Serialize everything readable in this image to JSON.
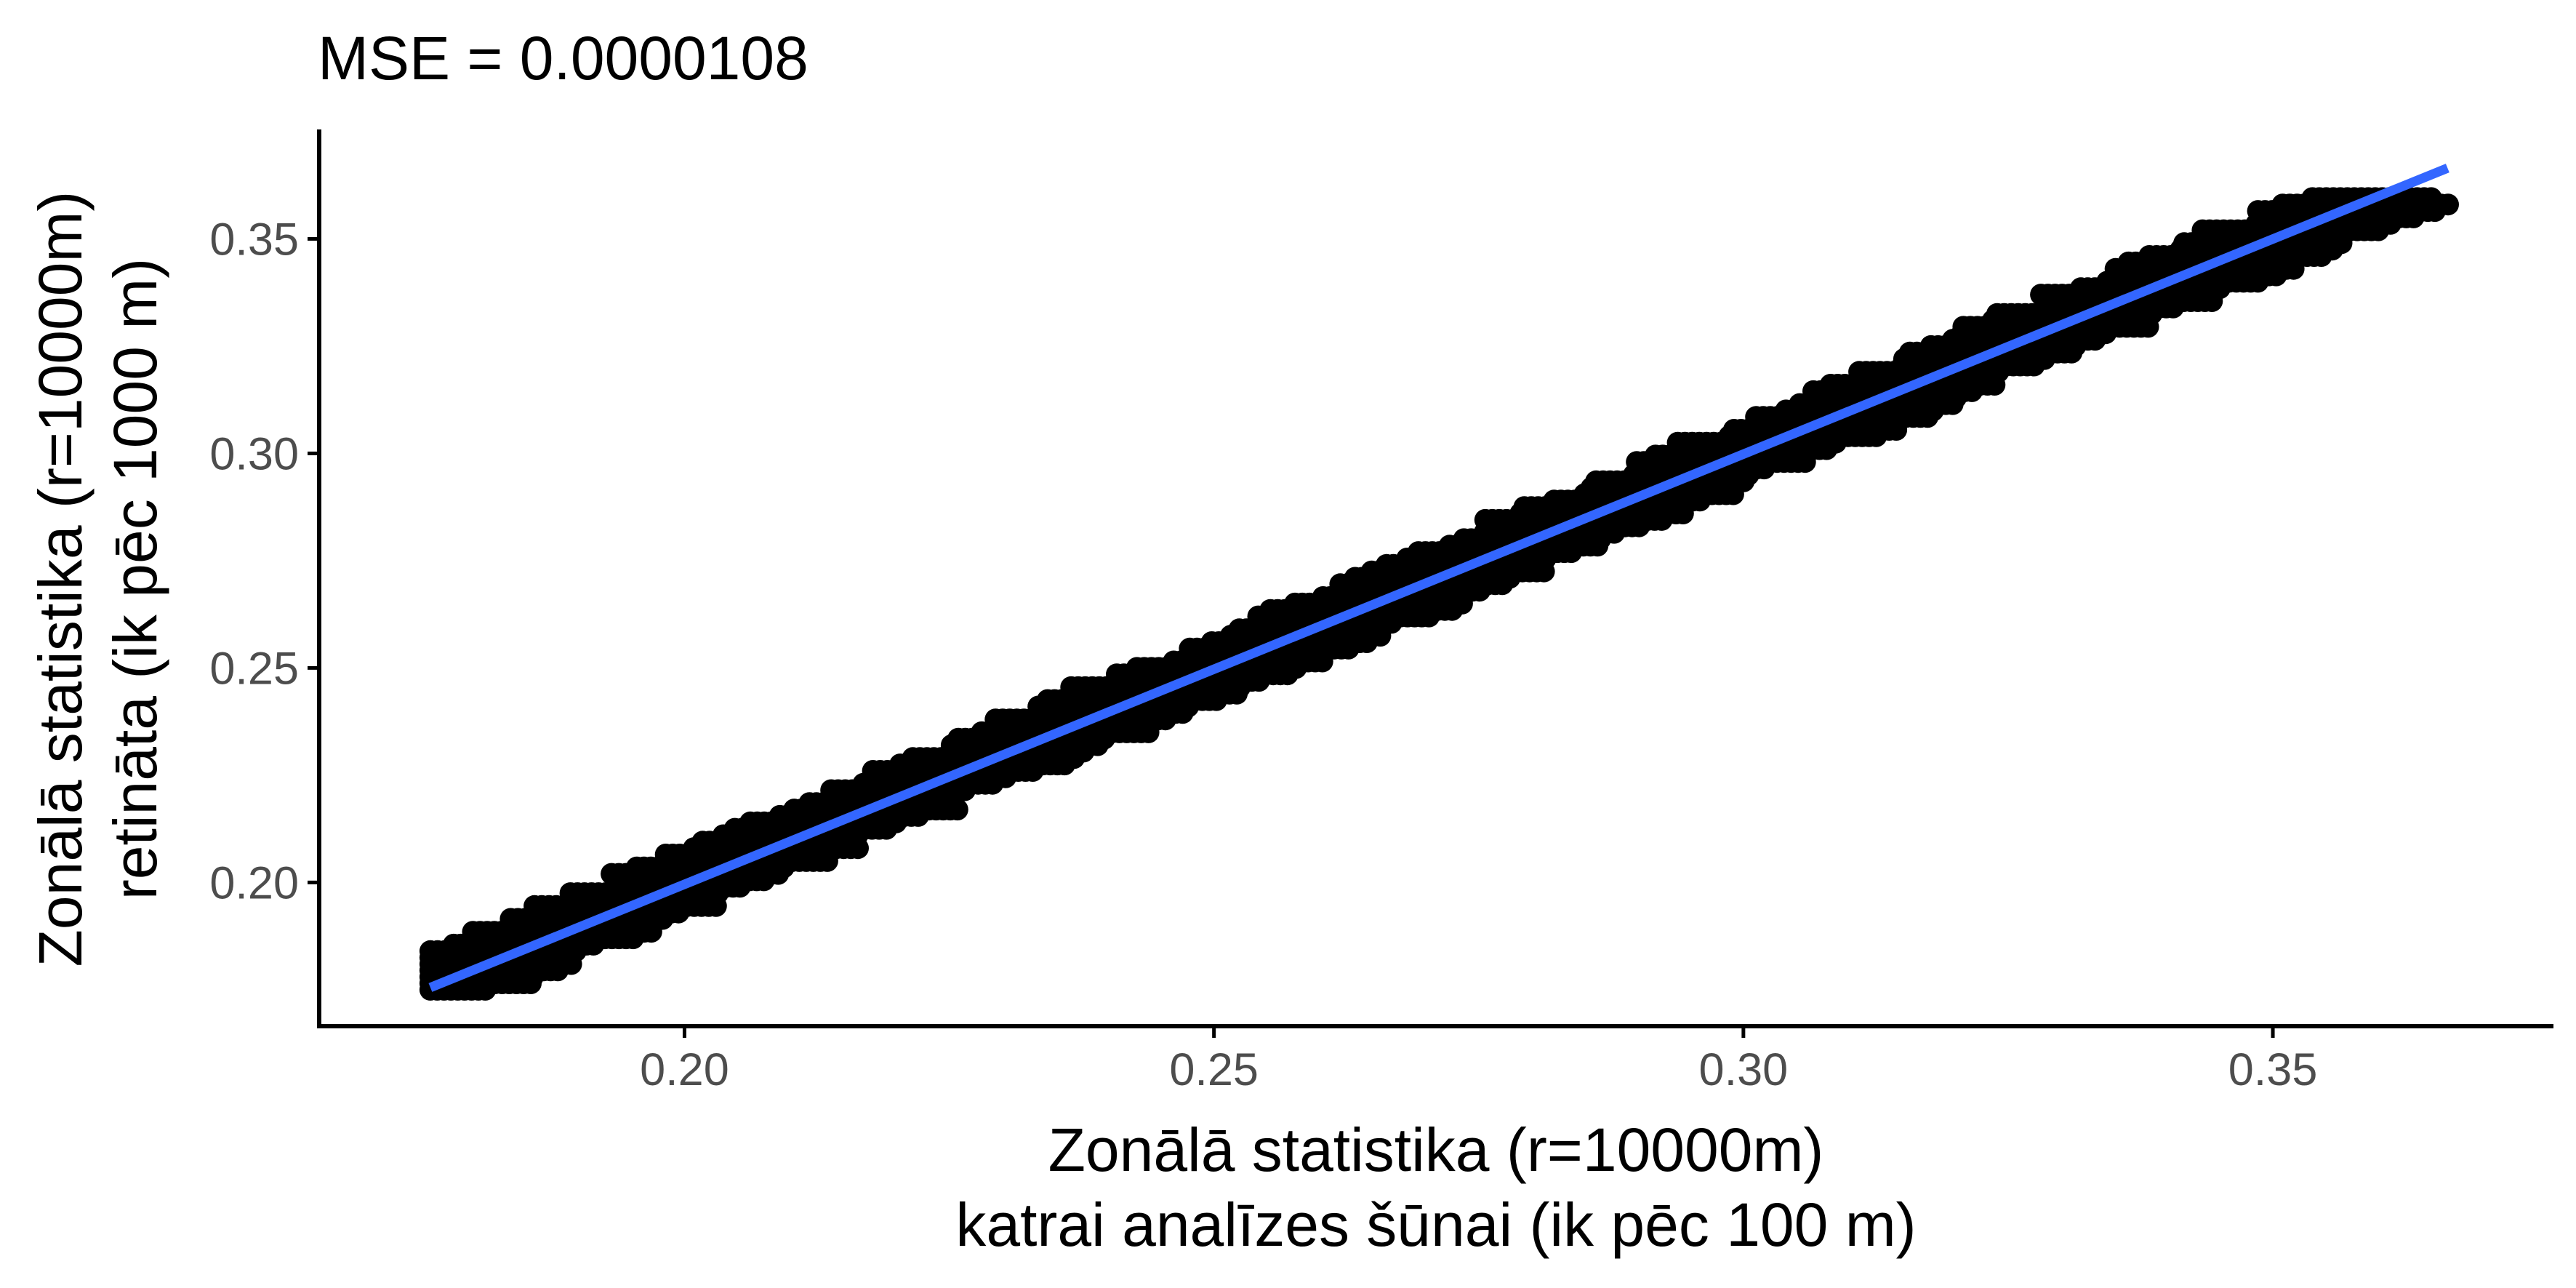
{
  "chart_data": {
    "type": "scatter",
    "title": "MSE = 0.0000108",
    "xlabel_lines": [
      "Zonālā statistika (r=10000m)",
      "katrai analīzes šūnai (ik pēc 100 m)"
    ],
    "ylabel_lines": [
      "Zonālā statistika (r=10000m)",
      "retināta (ik pēc 1000 m)"
    ],
    "xlim": [
      0.1655,
      0.3765
    ],
    "ylim": [
      0.1665,
      0.3755
    ],
    "x_ticks": [
      0.2,
      0.25,
      0.3,
      0.35
    ],
    "x_tick_labels": [
      "0.20",
      "0.25",
      "0.30",
      "0.35"
    ],
    "y_ticks": [
      0.2,
      0.25,
      0.3,
      0.35
    ],
    "y_tick_labels": [
      "0.20",
      "0.25",
      "0.30",
      "0.35"
    ],
    "grid": false,
    "point_color": "#000000",
    "points_x_range": [
      0.176,
      0.3675
    ],
    "points_y_range": [
      0.175,
      0.3595
    ],
    "y_level_step": 0.0015,
    "band_half_width": 0.009,
    "fit_line": {
      "type": "linear",
      "color": "#3366ff",
      "x": [
        0.176,
        0.3665
      ],
      "y": [
        0.1755,
        0.3665
      ]
    }
  }
}
